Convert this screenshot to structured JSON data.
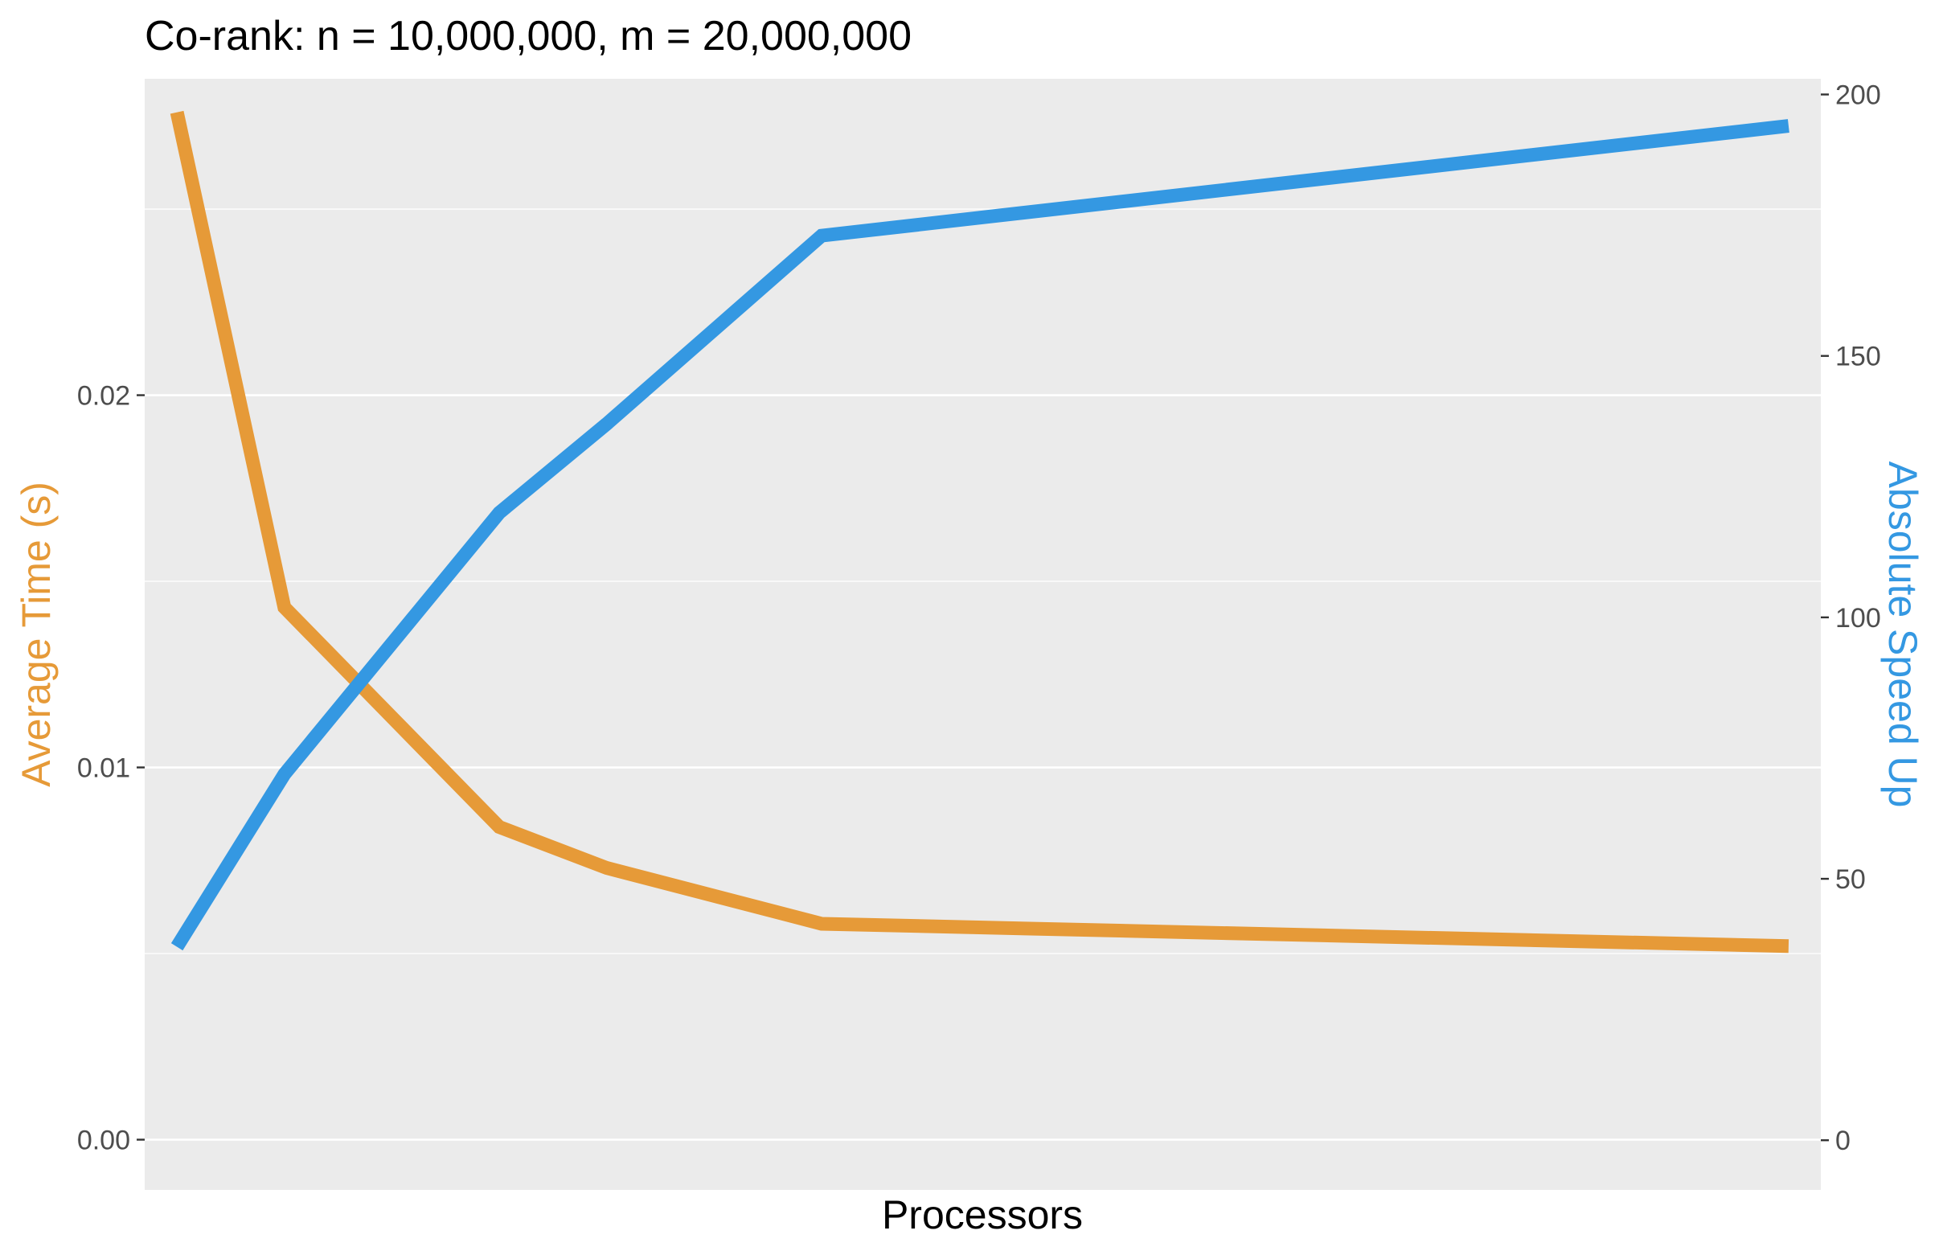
{
  "chart_data": {
    "type": "line",
    "title": "Co-rank: n = 10,000,000, m = 20,000,000",
    "xlabel": "Processors",
    "ylabel_left": "Average Time (s)",
    "ylabel_right": "Absolute Speed Up",
    "x": [
      1,
      2,
      4,
      5,
      7,
      16
    ],
    "xlim": [
      0.7,
      16.3
    ],
    "x_ticks_shown": false,
    "ylim_left": [
      -0.00135,
      0.0285
    ],
    "ylim_right": [
      -9.5,
      203
    ],
    "y_ticks_left": [
      "0.00",
      "0.01",
      "0.02"
    ],
    "y_tick_values_left": [
      0,
      0.01,
      0.02
    ],
    "y_ticks_right": [
      "0",
      "50",
      "100",
      "150",
      "200"
    ],
    "y_tick_values_right": [
      0,
      50,
      100,
      150,
      200
    ],
    "grid": true,
    "series": [
      {
        "axis": "left",
        "color": "#E69A38",
        "values": [
          0.0276,
          0.0143,
          0.0084,
          0.0073,
          0.0058,
          0.0052
        ]
      },
      {
        "axis": "right",
        "color": "#3498E2",
        "values": [
          37,
          70,
          120,
          137,
          173,
          194
        ]
      }
    ],
    "colors": {
      "panel_background": "#EBEBEB",
      "gridline": "#FFFFFF",
      "tick_label": "#4D4D4D",
      "tick_mark": "#333333",
      "left_axis_label": "#E69A38",
      "right_axis_label": "#3498E2"
    }
  }
}
